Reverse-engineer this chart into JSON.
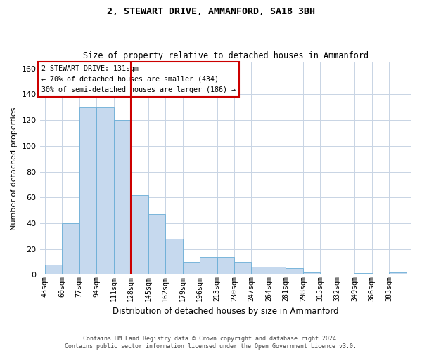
{
  "title1": "2, STEWART DRIVE, AMMANFORD, SA18 3BH",
  "title2": "Size of property relative to detached houses in Ammanford",
  "xlabel": "Distribution of detached houses by size in Ammanford",
  "ylabel": "Number of detached properties",
  "footer1": "Contains HM Land Registry data © Crown copyright and database right 2024.",
  "footer2": "Contains public sector information licensed under the Open Government Licence v3.0.",
  "annotation_title": "2 STEWART DRIVE: 131sqm",
  "annotation_line1": "← 70% of detached houses are smaller (434)",
  "annotation_line2": "30% of semi-detached houses are larger (186) →",
  "bar_color": "#c6d9ee",
  "bar_edge_color": "#6aaed6",
  "vline_color": "#cc0000",
  "annotation_box_color": "#ffffff",
  "annotation_box_edge": "#cc0000",
  "background_color": "#ffffff",
  "grid_color": "#c8d4e4",
  "categories": [
    "43sqm",
    "60sqm",
    "77sqm",
    "94sqm",
    "111sqm",
    "128sqm",
    "145sqm",
    "162sqm",
    "179sqm",
    "196sqm",
    "213sqm",
    "230sqm",
    "247sqm",
    "264sqm",
    "281sqm",
    "298sqm",
    "315sqm",
    "332sqm",
    "349sqm",
    "366sqm",
    "383sqm"
  ],
  "values": [
    8,
    40,
    130,
    130,
    120,
    62,
    47,
    28,
    10,
    14,
    14,
    10,
    6,
    6,
    5,
    2,
    0,
    0,
    1,
    0,
    2
  ],
  "bin_edges": [
    43,
    60,
    77,
    94,
    111,
    128,
    145,
    162,
    179,
    196,
    213,
    230,
    247,
    264,
    281,
    298,
    315,
    332,
    349,
    366,
    383,
    400
  ],
  "ylim": [
    0,
    165
  ],
  "yticks": [
    0,
    20,
    40,
    60,
    80,
    100,
    120,
    140,
    160
  ],
  "vline_x": 128
}
